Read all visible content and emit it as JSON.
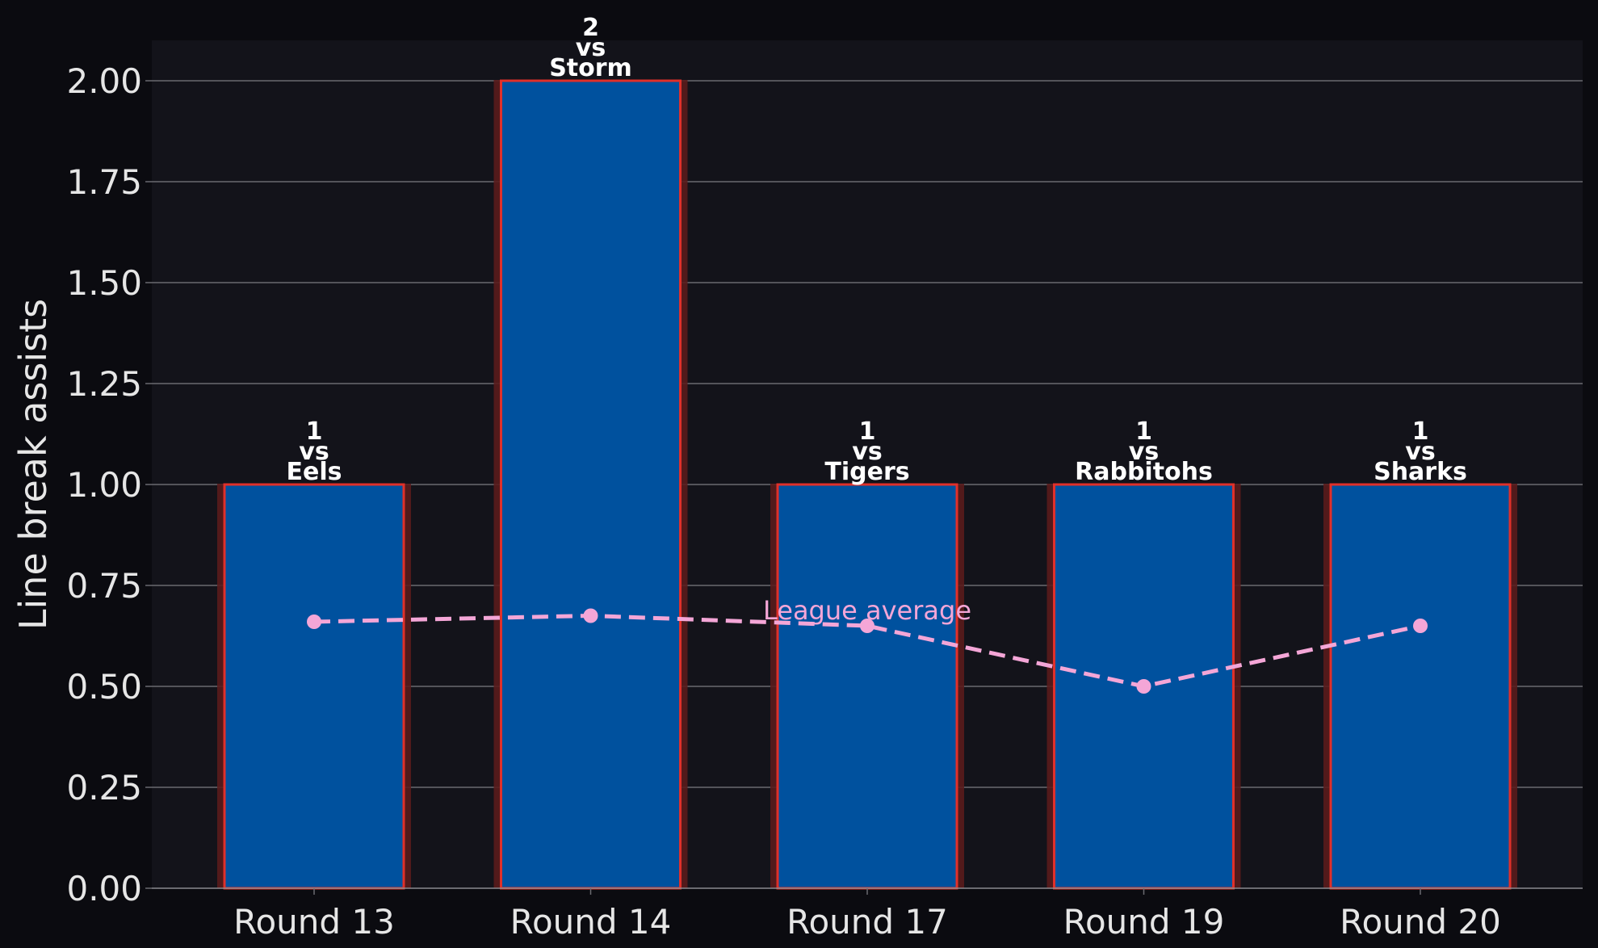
{
  "chart_data": {
    "type": "bar",
    "categories": [
      "Round 13",
      "Round 14",
      "Round 17",
      "Round 19",
      "Round 20"
    ],
    "opponents": [
      "Eels",
      "Storm",
      "Tigers",
      "Rabbitohs",
      "Sharks"
    ],
    "values": [
      1,
      2,
      1,
      1,
      1
    ],
    "bar_label_vs": "vs",
    "ylabel": "Line break assists",
    "ylim": [
      0,
      2.1
    ],
    "yticks": [
      "0.00",
      "0.25",
      "0.50",
      "0.75",
      "1.00",
      "1.25",
      "1.50",
      "1.75",
      "2.00"
    ],
    "ytick_values": [
      0,
      0.25,
      0.5,
      0.75,
      1.0,
      1.25,
      1.5,
      1.75,
      2.0
    ],
    "grid": true,
    "series": [
      {
        "name": "League average",
        "type": "line",
        "style": "dashed",
        "values": [
          0.66,
          0.675,
          0.65,
          0.5,
          0.65
        ]
      }
    ],
    "annotation": "League average",
    "colors": {
      "background": "#0b0b10",
      "plot_background": "#13131a",
      "bar_fill": "#00519e",
      "bar_edge": "#e0302a",
      "bar_glow": "#5a1c1c",
      "average_line": "#f4a6d7",
      "grid": "#6b6b70",
      "text": "#e6e6e6"
    }
  }
}
